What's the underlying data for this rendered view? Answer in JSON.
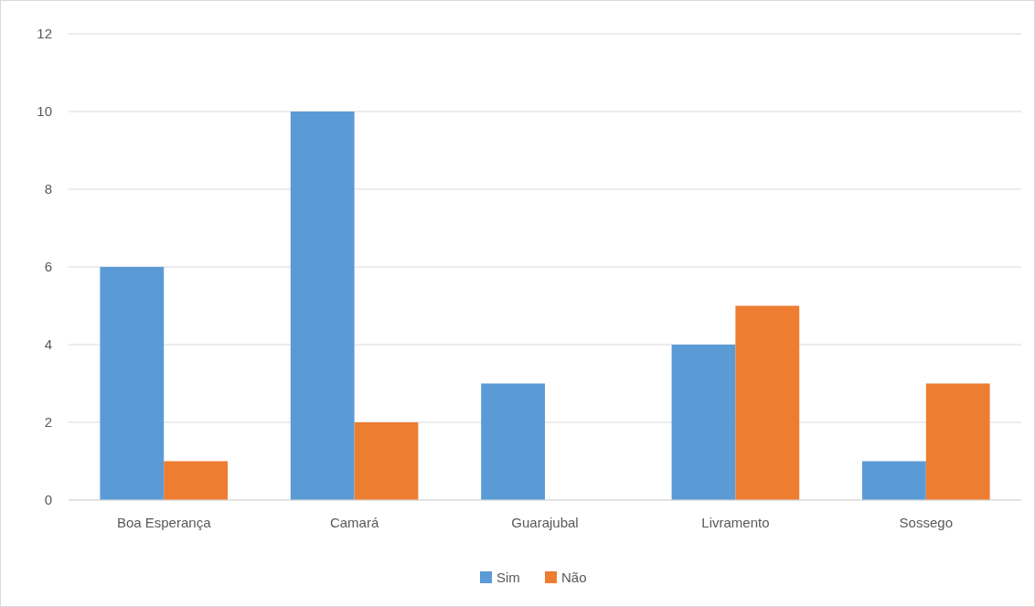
{
  "chart_data": {
    "type": "bar",
    "categories": [
      "Boa Esperança",
      "Camará",
      "Guarajubal",
      "Livramento",
      "Sossego"
    ],
    "series": [
      {
        "name": "Sim",
        "color": "#5b9bd5",
        "values": [
          6,
          10,
          3,
          4,
          1
        ]
      },
      {
        "name": "Não",
        "color": "#ed7d31",
        "values": [
          1,
          2,
          0,
          5,
          3
        ]
      }
    ],
    "ylim": [
      0,
      12
    ],
    "yticks": [
      0,
      2,
      4,
      6,
      8,
      10,
      12
    ],
    "grid": "y",
    "legend": "bottom"
  }
}
